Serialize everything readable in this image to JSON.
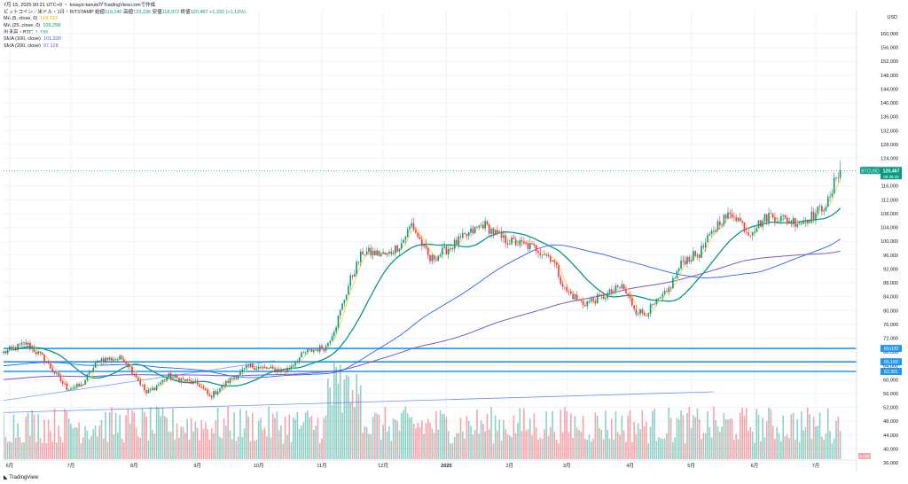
{
  "header": {
    "timestamp": "7月 15, 2025 00:21 UTC+9",
    "author_note": "tosayo-tanukiがTradingView.comで作成",
    "symbol_title": "ビットコイン／米ドル・1日・BITSTAMP",
    "open_label": "始値",
    "open_value": "119,140",
    "high_label": "高値",
    "high_value": "123,236",
    "low_label": "安値",
    "low_value": "118,972",
    "close_label": "終値",
    "close_value": "120,467",
    "change": "+1,332 (+1.12%)"
  },
  "indicators": [
    {
      "label": "MA (5, close, 0)",
      "value": "119,133",
      "color": "#ffd54a"
    },
    {
      "label": "MA (25, close, 0)",
      "value": "109,258",
      "color": "#089981"
    },
    {
      "label": "出来高・BTC",
      "value": "1.199",
      "color": "#089981"
    },
    {
      "label": "SMA (100, close)",
      "value": "101,330",
      "color": "#2962ff"
    },
    {
      "label": "SMA (200, close)",
      "value": "97,128",
      "color": "#7e57c2"
    }
  ],
  "currency": "USD",
  "price_tags": [
    {
      "label": "BTCUSD",
      "value": "120,467",
      "sub": "09:38:46",
      "color": "#089981"
    },
    {
      "label": "",
      "value": "69,030",
      "color": "#2196f3"
    },
    {
      "label": "",
      "value": "65,169",
      "color": "#2196f3"
    },
    {
      "label": "",
      "value": "62,391",
      "color": "#2196f3"
    }
  ],
  "volume_tag": "1.199",
  "footer": {
    "brand": "TradingView"
  },
  "colors": {
    "up": "#089981",
    "down": "#f23645",
    "ma5": "#ffd54a",
    "ma25": "#089981",
    "sma100": "#2962ff",
    "sma200": "#7e57c2",
    "hline": "#2196f3"
  },
  "chart_data": {
    "type": "candlestick",
    "symbol": "BTCUSD",
    "interval": "1D",
    "ylim": [
      34000,
      164000
    ],
    "y_ticks": [
      36000,
      40000,
      44000,
      48000,
      52000,
      56000,
      60000,
      64000,
      68000,
      72000,
      76000,
      80000,
      84000,
      88000,
      92000,
      96000,
      100000,
      104000,
      108000,
      112000,
      116000,
      120000,
      124000,
      128000,
      132000,
      136000,
      140000,
      144000,
      148000,
      152000,
      156000,
      160000
    ],
    "x_ticks": [
      {
        "label": "6月",
        "t": 0
      },
      {
        "label": "7月",
        "t": 30
      },
      {
        "label": "8月",
        "t": 61
      },
      {
        "label": "9月",
        "t": 92
      },
      {
        "label": "10月",
        "t": 122
      },
      {
        "label": "11月",
        "t": 153
      },
      {
        "label": "12月",
        "t": 183
      },
      {
        "label": "2025",
        "t": 214
      },
      {
        "label": "2月",
        "t": 245
      },
      {
        "label": "3月",
        "t": 273
      },
      {
        "label": "4月",
        "t": 304
      },
      {
        "label": "5月",
        "t": 334
      },
      {
        "label": "6月",
        "t": 365
      },
      {
        "label": "7月",
        "t": 395
      }
    ],
    "close_anchors": [
      [
        -3,
        67800
      ],
      [
        8,
        70500
      ],
      [
        16,
        66500
      ],
      [
        28,
        57500
      ],
      [
        35,
        58200
      ],
      [
        44,
        66000
      ],
      [
        56,
        66000
      ],
      [
        62,
        61000
      ],
      [
        67,
        56000
      ],
      [
        78,
        61000
      ],
      [
        93,
        58500
      ],
      [
        98,
        55000
      ],
      [
        108,
        60000
      ],
      [
        118,
        64000
      ],
      [
        125,
        63200
      ],
      [
        135,
        62500
      ],
      [
        145,
        68000
      ],
      [
        155,
        69500
      ],
      [
        160,
        76000
      ],
      [
        167,
        89000
      ],
      [
        173,
        97000
      ],
      [
        185,
        96000
      ],
      [
        192,
        99500
      ],
      [
        197,
        105000
      ],
      [
        206,
        94500
      ],
      [
        215,
        98000
      ],
      [
        226,
        102500
      ],
      [
        232,
        105000
      ],
      [
        242,
        100500
      ],
      [
        258,
        98000
      ],
      [
        266,
        95000
      ],
      [
        272,
        86000
      ],
      [
        281,
        82000
      ],
      [
        291,
        84000
      ],
      [
        300,
        87000
      ],
      [
        307,
        80000
      ],
      [
        311,
        79000
      ],
      [
        322,
        85000
      ],
      [
        330,
        94500
      ],
      [
        338,
        96500
      ],
      [
        348,
        106000
      ],
      [
        355,
        108000
      ],
      [
        362,
        102500
      ],
      [
        372,
        107500
      ],
      [
        382,
        106000
      ],
      [
        388,
        105500
      ],
      [
        395,
        108000
      ],
      [
        402,
        112000
      ],
      [
        405,
        119100
      ],
      [
        407,
        120467
      ]
    ],
    "horizontal_lines": [
      69030,
      65169,
      62391
    ],
    "trendline": {
      "from": [
        -3,
        50500
      ],
      "to": [
        345,
        56500
      ]
    },
    "trendline2": {
      "from": [
        -3,
        54000
      ],
      "to": [
        130,
        65500
      ]
    },
    "sma100_last": 101330,
    "sma200_last": 97128,
    "ma5_last": 119133,
    "ma25_last": 109258,
    "volume_last": 1.199
  }
}
